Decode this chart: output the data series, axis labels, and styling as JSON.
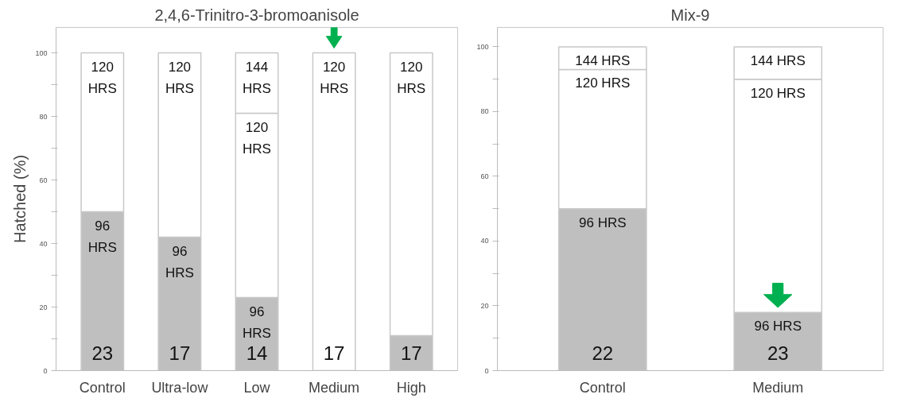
{
  "chart_data": [
    {
      "type": "bar",
      "stacked": true,
      "title": "2,4,6-Trinitro-3-bromoanisole",
      "ylabel": "Hatched (%)",
      "categories": [
        "Control",
        "Ultra-low",
        "Low",
        "Medium",
        "High"
      ],
      "series": [
        {
          "color": "#bfbfbf",
          "values": [
            50,
            42,
            23,
            0,
            11
          ]
        },
        {
          "color": "#ffffff",
          "values": [
            50,
            58,
            58,
            100,
            89
          ]
        },
        {
          "color": "#ffffff",
          "values": [
            null,
            null,
            19,
            null,
            null
          ]
        }
      ],
      "annotations": [
        {
          "text": "96 HRS",
          "x": "Control",
          "y": 50
        },
        {
          "text": "96 HRS",
          "x": "Ultra-low",
          "y": 42
        },
        {
          "text": "96 HRS",
          "x": "Low",
          "y": 23
        },
        {
          "text": "120 HRS",
          "x": "Control",
          "y": 100
        },
        {
          "text": "120 HRS",
          "x": "Ultra-low",
          "y": 100
        },
        {
          "text": "120 HRS",
          "x": "Low",
          "y": 81
        },
        {
          "text": "120 HRS",
          "x": "Medium",
          "y": 100
        },
        {
          "text": "120 HRS",
          "x": "High",
          "y": 100
        },
        {
          "text": "144 HRS",
          "x": "Low",
          "y": 100
        },
        "23",
        "17",
        "14",
        "17",
        "17"
      ],
      "ylim": [
        0,
        108
      ],
      "yticks": [
        0,
        {
          "value": 10,
          "label": null
        },
        20,
        {
          "value": 30,
          "label": null
        },
        40,
        {
          "value": 50,
          "label": null
        },
        60,
        {
          "value": 70,
          "label": null
        },
        80,
        {
          "value": 90,
          "label": null
        },
        100
      ],
      "grid": false
    },
    {
      "type": "bar",
      "stacked": true,
      "title": "Mix-9",
      "categories": [
        "Control",
        "Medium"
      ],
      "series": [
        {
          "color": "#bfbfbf",
          "values": [
            50,
            18
          ]
        },
        {
          "color": "#ffffff",
          "values": [
            43,
            72
          ]
        },
        {
          "color": "#ffffff",
          "values": [
            7,
            10
          ]
        }
      ],
      "annotations": [
        {
          "text": "96 HRS",
          "x": "Control",
          "y": 50
        },
        {
          "text": "96 HRS",
          "x": "Medium",
          "y": 18
        },
        {
          "text": "120 HRS",
          "x": "Control",
          "y": 93
        },
        {
          "text": "120 HRS",
          "x": "Medium",
          "y": 90
        },
        {
          "text": "144 HRS",
          "x": "Control",
          "y": 100
        },
        {
          "text": "144 HRS",
          "x": "Medium",
          "y": 100
        },
        "22",
        "23"
      ],
      "ylim": [
        0,
        106
      ],
      "yticks": [
        0,
        {
          "value": 10,
          "label": null
        },
        20,
        {
          "value": 30,
          "label": null
        },
        40,
        {
          "value": 50,
          "label": null
        },
        60,
        {
          "value": 70,
          "label": null
        },
        80,
        {
          "value": 90,
          "label": null
        },
        100
      ],
      "grid": false
    }
  ]
}
